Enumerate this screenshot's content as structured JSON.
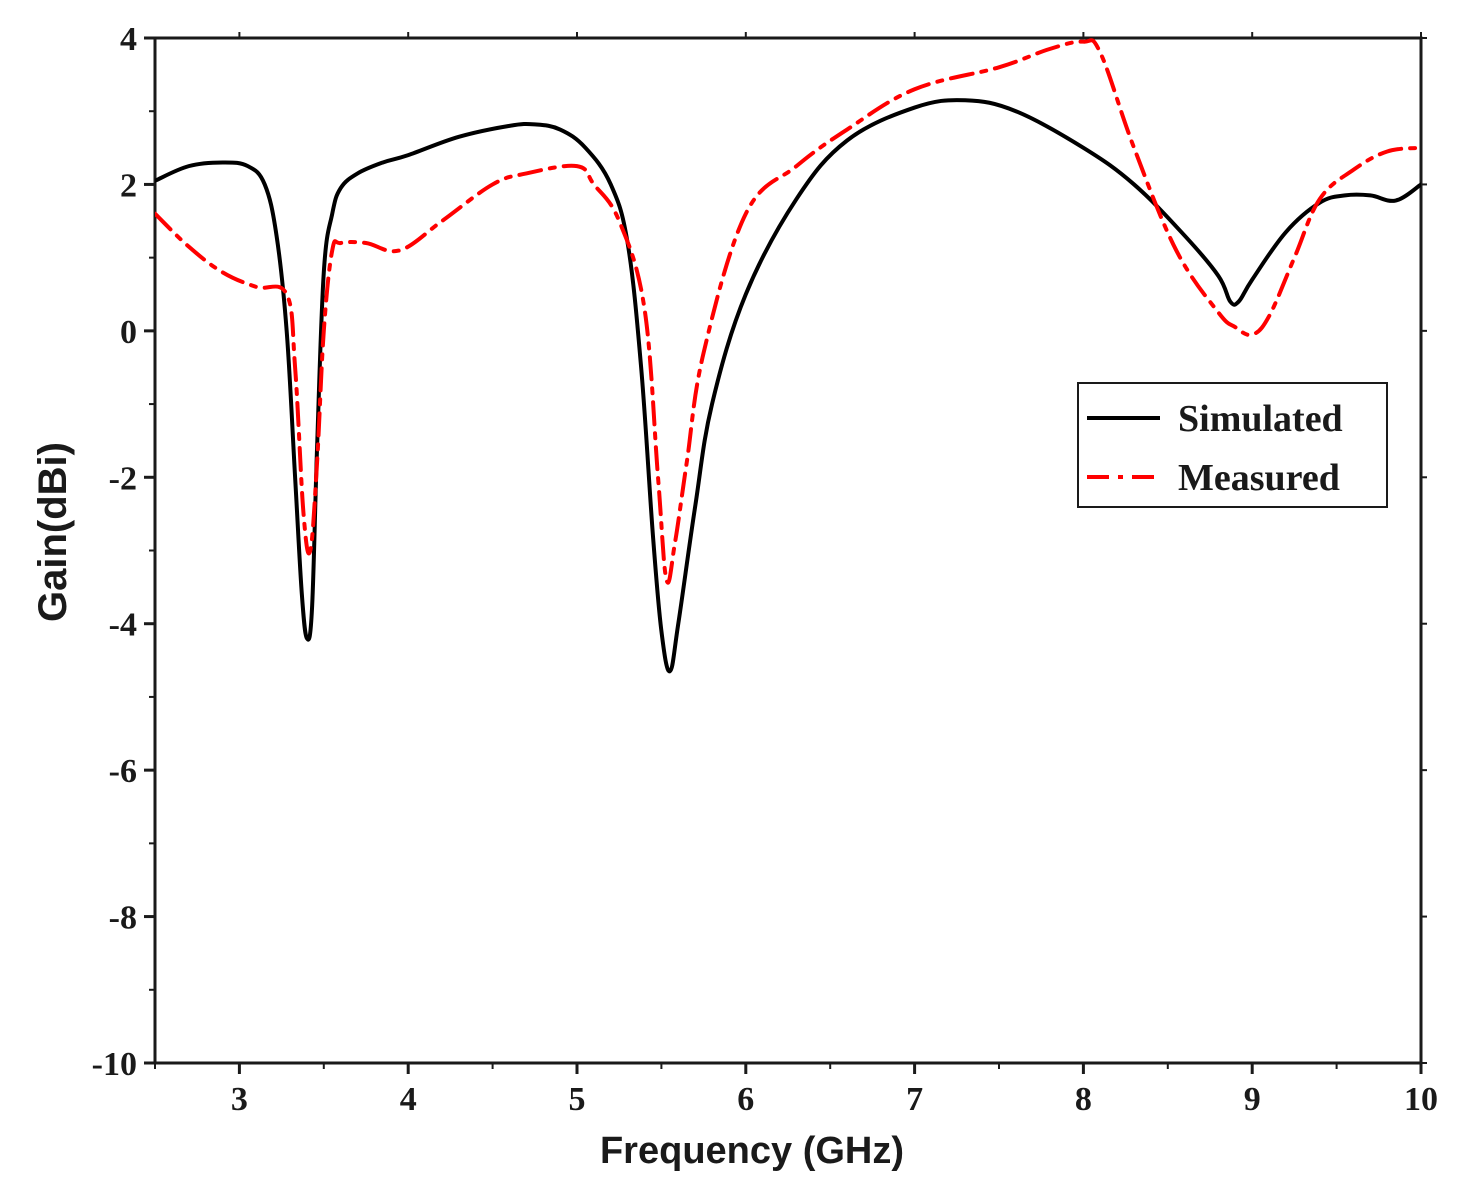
{
  "chart_data": {
    "type": "line",
    "title": "",
    "xlabel": "Frequency (GHz)",
    "ylabel": "Gain(dBi)",
    "xlim": [
      2.5,
      10
    ],
    "ylim": [
      -10,
      4
    ],
    "xticks": [
      3,
      4,
      5,
      6,
      7,
      8,
      9,
      10
    ],
    "yticks": [
      4,
      2,
      0,
      -2,
      -4,
      -6,
      -8,
      -10
    ],
    "xtick_labels": [
      "3",
      "4",
      "5",
      "6",
      "7",
      "8",
      "9",
      "10"
    ],
    "ytick_labels": [
      "4",
      "2",
      "0",
      "-2",
      "-4",
      "-6",
      "-8",
      "-10"
    ],
    "grid": false,
    "legend_position": "right",
    "series": [
      {
        "name": "Simulated",
        "color": "#000000",
        "style": "solid",
        "x": [
          2.5,
          2.7,
          2.9,
          3.05,
          3.15,
          3.22,
          3.28,
          3.33,
          3.37,
          3.4,
          3.43,
          3.46,
          3.5,
          3.55,
          3.6,
          3.7,
          3.85,
          4.0,
          4.3,
          4.6,
          4.75,
          4.9,
          5.05,
          5.2,
          5.3,
          5.38,
          5.45,
          5.5,
          5.55,
          5.6,
          5.7,
          5.8,
          6.0,
          6.3,
          6.6,
          7.0,
          7.3,
          7.6,
          8.0,
          8.3,
          8.6,
          8.8,
          8.87,
          8.92,
          9.0,
          9.2,
          9.4,
          9.55,
          9.7,
          9.85,
          10.0
        ],
        "y": [
          2.05,
          2.25,
          2.3,
          2.25,
          2.0,
          1.3,
          0.0,
          -2.0,
          -3.6,
          -4.2,
          -3.8,
          -1.6,
          0.8,
          1.6,
          1.95,
          2.15,
          2.3,
          2.4,
          2.65,
          2.8,
          2.82,
          2.75,
          2.5,
          2.0,
          1.2,
          -0.5,
          -2.8,
          -4.1,
          -4.65,
          -4.0,
          -2.4,
          -1.0,
          0.5,
          1.8,
          2.6,
          3.05,
          3.15,
          3.0,
          2.5,
          2.0,
          1.3,
          0.75,
          0.4,
          0.4,
          0.7,
          1.35,
          1.75,
          1.85,
          1.85,
          1.78,
          2.0
        ]
      },
      {
        "name": "Measured",
        "color": "#ff0000",
        "style": "dashdot",
        "x": [
          2.5,
          2.7,
          2.9,
          3.1,
          3.28,
          3.33,
          3.38,
          3.42,
          3.46,
          3.5,
          3.55,
          3.6,
          3.75,
          3.95,
          4.2,
          4.5,
          4.7,
          5.0,
          5.1,
          5.25,
          5.4,
          5.48,
          5.53,
          5.58,
          5.65,
          5.75,
          6.0,
          6.3,
          6.6,
          7.0,
          7.5,
          7.8,
          8.0,
          8.1,
          8.3,
          8.55,
          8.8,
          8.9,
          9.0,
          9.1,
          9.25,
          9.4,
          9.6,
          9.8,
          10.0
        ],
        "y": [
          1.6,
          1.15,
          0.8,
          0.6,
          0.5,
          -0.5,
          -2.5,
          -3.0,
          -1.8,
          0.0,
          1.1,
          1.2,
          1.2,
          1.1,
          1.5,
          2.0,
          2.15,
          2.25,
          2.0,
          1.5,
          0.3,
          -2.0,
          -3.4,
          -2.9,
          -1.8,
          -0.3,
          1.6,
          2.25,
          2.75,
          3.3,
          3.6,
          3.85,
          3.95,
          3.8,
          2.5,
          1.1,
          0.25,
          0.05,
          -0.05,
          0.2,
          1.0,
          1.8,
          2.2,
          2.45,
          2.5
        ]
      }
    ]
  }
}
